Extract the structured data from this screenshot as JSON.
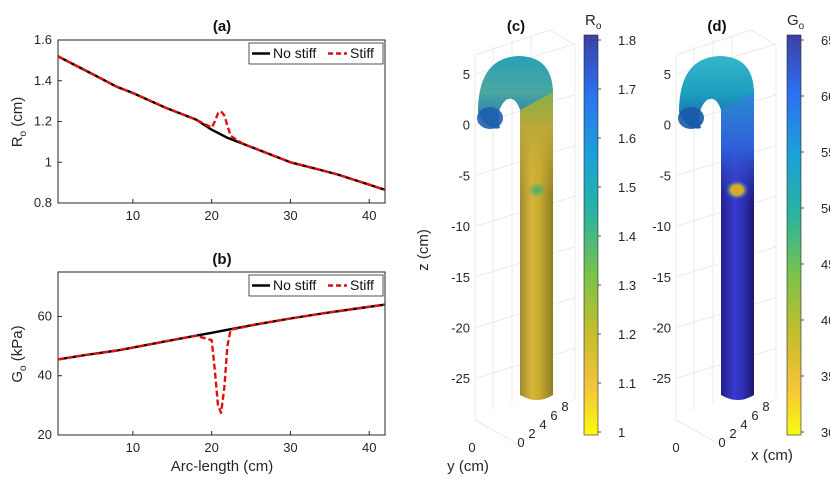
{
  "chart_data": [
    {
      "type": "line",
      "panel": "(a)",
      "title": "(a)",
      "xlabel": "",
      "ylabel_main": "R",
      "ylabel_sub": "o",
      "ylabel_unit": " (cm)",
      "xlim": [
        0.5,
        42
      ],
      "ylim": [
        0.8,
        1.6
      ],
      "xticks": [
        "10",
        "20",
        "30",
        "40"
      ],
      "yticks": [
        "0.8",
        "1",
        "1.2",
        "1.4",
        "1.6"
      ],
      "legend": {
        "position": "top-right",
        "entries": [
          "No stiff",
          "Stiff"
        ]
      },
      "series": [
        {
          "name": "No stiff",
          "color": "#000000",
          "style": "solid",
          "x": [
            0.5,
            3,
            5,
            7,
            8,
            10,
            12,
            14,
            16,
            18,
            20,
            21,
            22,
            24,
            26,
            28,
            30,
            32,
            34,
            36,
            38,
            40,
            42
          ],
          "y": [
            1.52,
            1.47,
            1.43,
            1.39,
            1.37,
            1.34,
            1.305,
            1.27,
            1.24,
            1.21,
            1.16,
            1.14,
            1.12,
            1.09,
            1.06,
            1.03,
            1.0,
            0.98,
            0.96,
            0.94,
            0.915,
            0.89,
            0.865
          ]
        },
        {
          "name": "Stiff",
          "color": "#e01010",
          "style": "dashed",
          "x": [
            0.5,
            3,
            5,
            7,
            8,
            10,
            12,
            14,
            16,
            18,
            20,
            20.4,
            20.8,
            21.2,
            21.6,
            22,
            22.4,
            24,
            26,
            28,
            30,
            32,
            34,
            36,
            38,
            40,
            42
          ],
          "y": [
            1.52,
            1.47,
            1.43,
            1.39,
            1.37,
            1.34,
            1.305,
            1.27,
            1.24,
            1.21,
            1.17,
            1.2,
            1.24,
            1.25,
            1.23,
            1.18,
            1.13,
            1.09,
            1.06,
            1.03,
            1.0,
            0.98,
            0.96,
            0.94,
            0.915,
            0.89,
            0.865
          ]
        }
      ]
    },
    {
      "type": "line",
      "panel": "(b)",
      "title": "(b)",
      "xlabel": "Arc-length (cm)",
      "ylabel_main": "G",
      "ylabel_sub": "o",
      "ylabel_unit": " (kPa)",
      "xlim": [
        0.5,
        42
      ],
      "ylim": [
        20,
        75
      ],
      "xticks": [
        "10",
        "20",
        "30",
        "40"
      ],
      "yticks": [
        "20",
        "40",
        "60"
      ],
      "legend": {
        "position": "top-right",
        "entries": [
          "No stiff",
          "Stiff"
        ]
      },
      "series": [
        {
          "name": "No stiff",
          "color": "#000000",
          "style": "solid",
          "x": [
            0.5,
            4,
            8,
            10,
            14,
            18,
            20,
            22,
            26,
            30,
            34,
            38,
            42
          ],
          "y": [
            45.5,
            47,
            48.5,
            49.5,
            51.5,
            53.5,
            54.5,
            55.5,
            57.5,
            59.3,
            61,
            62.5,
            64
          ]
        },
        {
          "name": "Stiff",
          "color": "#e01010",
          "style": "dashed",
          "x": [
            0.5,
            4,
            8,
            10,
            14,
            18,
            20,
            20.4,
            20.8,
            21.2,
            21.6,
            22,
            22.4,
            26,
            30,
            34,
            38,
            42
          ],
          "y": [
            45.5,
            47,
            48.5,
            49.5,
            51.5,
            53.5,
            52,
            42,
            30,
            27.5,
            36,
            50,
            55.5,
            57.5,
            59.3,
            61,
            62.5,
            64
          ]
        }
      ]
    },
    {
      "type": "surface3d",
      "panel": "(c)",
      "title": "(c)",
      "zlabel": "z (cm)",
      "ylabel": "y (cm)",
      "zticks": [
        "5",
        "0",
        "-5",
        "-10",
        "-15",
        "-20",
        "-25"
      ],
      "yticks": [
        "0"
      ],
      "xticks": [
        "0",
        "2",
        "4",
        "6",
        "8"
      ],
      "colorbar": {
        "label_main": "R",
        "label_sub": "o",
        "min": 1,
        "max": 1.8,
        "ticks": [
          "1.8",
          "1.7",
          "1.6",
          "1.5",
          "1.4",
          "1.3",
          "1.2",
          "1.1",
          "1"
        ]
      }
    },
    {
      "type": "surface3d",
      "panel": "(d)",
      "title": "(d)",
      "zlabel": "",
      "xlabel": "x (cm)",
      "zticks": [
        "5",
        "0",
        "-5",
        "-10",
        "-15",
        "-20",
        "-25"
      ],
      "yticks": [
        "0"
      ],
      "xticks": [
        "0",
        "2",
        "4",
        "6",
        "8"
      ],
      "colorbar": {
        "label_main": "G",
        "label_sub": "o",
        "min": 30,
        "max": 65,
        "ticks": [
          "65",
          "60",
          "55",
          "50",
          "45",
          "40",
          "35",
          "30"
        ]
      }
    }
  ]
}
